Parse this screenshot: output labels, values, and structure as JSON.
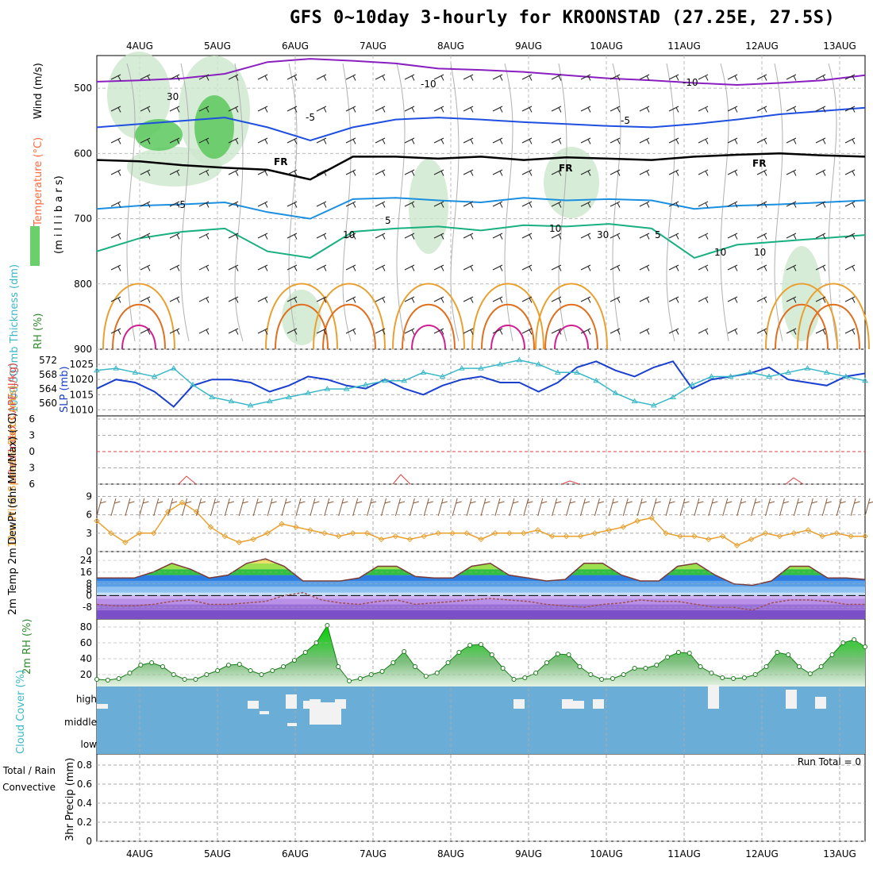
{
  "title": "GFS 0~10day 3-hourly for KROONSTAD (27.25E, 27.5S)",
  "chart_data": [
    {
      "type": "contour",
      "panel": "upper-air",
      "days": [
        "4AUG",
        "5AUG",
        "6AUG",
        "7AUG",
        "8AUG",
        "9AUG",
        "10AUG",
        "11AUG",
        "12AUG",
        "13AUG"
      ],
      "ylabel_parts": [
        {
          "text": "Wind (m/s)",
          "color": "#000000"
        },
        {
          "text": "Temperature (°C)",
          "color": "#ff6a3d"
        },
        {
          "text": "(m i l l i b a r s)",
          "color": "#000000"
        },
        {
          "text": "RH (%)",
          "color": "#2e8b2e"
        }
      ],
      "pressure_ticks": [
        "500",
        "600",
        "700",
        "800",
        "900"
      ],
      "ylim": [
        450,
        900
      ],
      "contour_labels": [
        "-10",
        "-10",
        "-5",
        "-5",
        "-5",
        "5",
        "5",
        "10",
        "10",
        "30",
        "30",
        "10",
        "10",
        "FR",
        "FR",
        "FR"
      ],
      "temp_lines": [
        {
          "label": "-10",
          "color": "#8a1fc0",
          "values": [
            490,
            488,
            485,
            478,
            460,
            455,
            458,
            462,
            470,
            472,
            475,
            480,
            485,
            488,
            492,
            495,
            492,
            488,
            480
          ]
        },
        {
          "label": "-5",
          "color": "#1f4fe0",
          "values": [
            560,
            555,
            550,
            545,
            560,
            580,
            560,
            548,
            545,
            548,
            552,
            555,
            558,
            560,
            555,
            548,
            540,
            535,
            530
          ]
        },
        {
          "label": "FR",
          "color": "#000000",
          "values": [
            610,
            612,
            618,
            622,
            625,
            640,
            605,
            605,
            608,
            605,
            610,
            606,
            608,
            610,
            605,
            602,
            600,
            603,
            605
          ]
        },
        {
          "label": "5",
          "color": "#1a8fe0",
          "values": [
            685,
            680,
            678,
            675,
            690,
            700,
            670,
            668,
            672,
            675,
            668,
            672,
            670,
            672,
            685,
            680,
            678,
            675,
            672
          ]
        },
        {
          "label": "10",
          "color": "#18b080",
          "values": [
            750,
            730,
            720,
            715,
            750,
            760,
            720,
            715,
            712,
            718,
            710,
            712,
            708,
            715,
            760,
            740,
            735,
            730,
            725
          ]
        }
      ]
    },
    {
      "type": "line",
      "panel": "thickness-slp",
      "ylabel_left": "1000-500mb Thickness (dm)",
      "ylabel_right": "SLP (mb)",
      "thickness_ticks": [
        "572",
        "568",
        "564",
        "560"
      ],
      "slp_ticks": [
        "1025",
        "1020",
        "1015",
        "1010"
      ],
      "series": [
        {
          "name": "SLP (mb)",
          "color": "#1a3fcf",
          "values": [
            1017,
            1020,
            1019,
            1016,
            1011,
            1018,
            1020,
            1020,
            1019,
            1016,
            1018,
            1021,
            1020,
            1018,
            1017,
            1020,
            1017,
            1015,
            1018,
            1020,
            1021,
            1019,
            1019,
            1016,
            1019,
            1024,
            1026,
            1023,
            1021,
            1024,
            1026,
            1017,
            1020,
            1021,
            1022,
            1024,
            1020,
            1019,
            1018,
            1021,
            1022
          ]
        },
        {
          "name": "Thickness (dm)",
          "color": "#3ab8c8",
          "values": [
            568.5,
            569,
            568,
            567,
            569,
            565,
            562,
            561,
            560,
            561,
            562,
            563,
            564,
            564,
            565,
            566,
            566,
            568,
            567,
            569,
            569,
            570,
            571,
            570,
            568,
            568,
            566,
            563,
            561,
            560,
            562,
            565,
            567,
            567,
            568,
            567,
            568,
            569,
            568,
            567,
            566
          ]
        }
      ],
      "ylim_slp": [
        1008,
        1030
      ]
    },
    {
      "type": "line",
      "panel": "cape-li",
      "ylabel": "Lifted Index CAPE (J/kg)",
      "li_ticks": [
        "6",
        "3",
        "0",
        "3",
        "6"
      ],
      "cape_markers": [
        "4AUG",
        "5AUG",
        "7AUG",
        "9AUG",
        "12AUG"
      ]
    },
    {
      "type": "line",
      "panel": "10m-wind",
      "ylabel": "10m Wind Speed & Barbs (m/s)",
      "ticks": [
        "9",
        "6",
        "3",
        "0"
      ],
      "ylim": [
        0,
        11
      ],
      "values": [
        5,
        3,
        1.5,
        3,
        3,
        6.5,
        8,
        6.5,
        4,
        2.5,
        1.5,
        2,
        3,
        4.5,
        4,
        3.5,
        3,
        2.5,
        3,
        3,
        2,
        2.5,
        2,
        2.5,
        3,
        3,
        3,
        2,
        3,
        3,
        3,
        3.5,
        2.5,
        2.5,
        2.5,
        3,
        3.5,
        4,
        5,
        5.5,
        3,
        2.5,
        2.5,
        2,
        2.5,
        1,
        2,
        3,
        2.5,
        3,
        3.5,
        2.5,
        3,
        2.5,
        2.5
      ]
    },
    {
      "type": "area",
      "panel": "2m-temp",
      "ylabel": "2m Temp 2m DewPt (6hr Min/Max) (°C)",
      "ticks": [
        "24",
        "16",
        "8",
        "0",
        "-8"
      ],
      "ylim": [
        -16,
        30
      ],
      "temp": [
        12,
        12,
        12,
        16,
        22,
        18,
        12,
        14,
        22,
        25,
        20,
        10,
        10,
        10,
        12,
        20,
        20,
        13,
        12,
        12,
        20,
        22,
        14,
        12,
        10,
        11,
        22,
        22,
        14,
        10,
        10,
        20,
        22,
        14,
        8,
        7,
        10,
        20,
        20,
        12,
        12,
        11
      ],
      "dewpt": [
        -6,
        -7,
        -7,
        -6,
        -4,
        -3,
        -6,
        -6,
        -5,
        -4,
        0,
        2,
        -3,
        -5,
        -6,
        -4,
        -3,
        -6,
        -5,
        -4,
        -3,
        -2,
        -3,
        -4,
        -6,
        -7,
        -8,
        -6,
        -5,
        -3,
        -4,
        -4,
        -6,
        -8,
        -8,
        -10,
        -5,
        -3,
        -3,
        -4,
        -6,
        -6
      ],
      "dewpt_marker": "8"
    },
    {
      "type": "area",
      "panel": "2m-rh",
      "ylabel": "2m RH (%)",
      "ticks": [
        "80",
        "60",
        "40",
        "20"
      ],
      "ylim": [
        5,
        90
      ],
      "values": [
        14,
        13,
        15,
        22,
        32,
        35,
        30,
        20,
        14,
        14,
        20,
        25,
        32,
        33,
        25,
        20,
        25,
        30,
        38,
        48,
        60,
        82,
        30,
        12,
        15,
        20,
        24,
        35,
        49,
        30,
        18,
        22,
        35,
        48,
        57,
        58,
        45,
        28,
        14,
        16,
        22,
        35,
        46,
        45,
        30,
        20,
        14,
        15,
        20,
        28,
        28,
        32,
        42,
        48,
        47,
        30,
        22,
        16,
        15,
        16,
        20,
        30,
        48,
        45,
        30,
        21,
        30,
        45,
        60,
        64,
        55
      ]
    },
    {
      "type": "bar",
      "panel": "cloud-cover",
      "ylabel": "Cloud Cover (%)",
      "levels": [
        "high",
        "middle",
        "low"
      ],
      "bg_color": "#6aaed8",
      "high": [
        [
          0,
          6
        ],
        [
          190,
          10
        ],
        [
          238,
          18
        ],
        [
          260,
          10
        ],
        [
          268,
          12
        ],
        [
          300,
          12
        ],
        [
          525,
          12
        ],
        [
          586,
          12
        ],
        [
          600,
          10
        ],
        [
          625,
          12
        ],
        [
          770,
          30
        ],
        [
          868,
          24
        ],
        [
          905,
          15
        ]
      ],
      "middle": [
        [
          205,
          25
        ],
        [
          240,
          10
        ],
        [
          268,
          36
        ]
      ]
    },
    {
      "type": "bar",
      "panel": "precip",
      "ylabel": "3hr Precip (mm)",
      "label_total": "Total / Rain",
      "label_conv": "Convective",
      "run_total": "Run Total = 0",
      "ticks": [
        "0.8",
        "0.6",
        "0.4",
        "0.2",
        "0"
      ],
      "ylim": [
        0,
        0.9
      ]
    }
  ]
}
